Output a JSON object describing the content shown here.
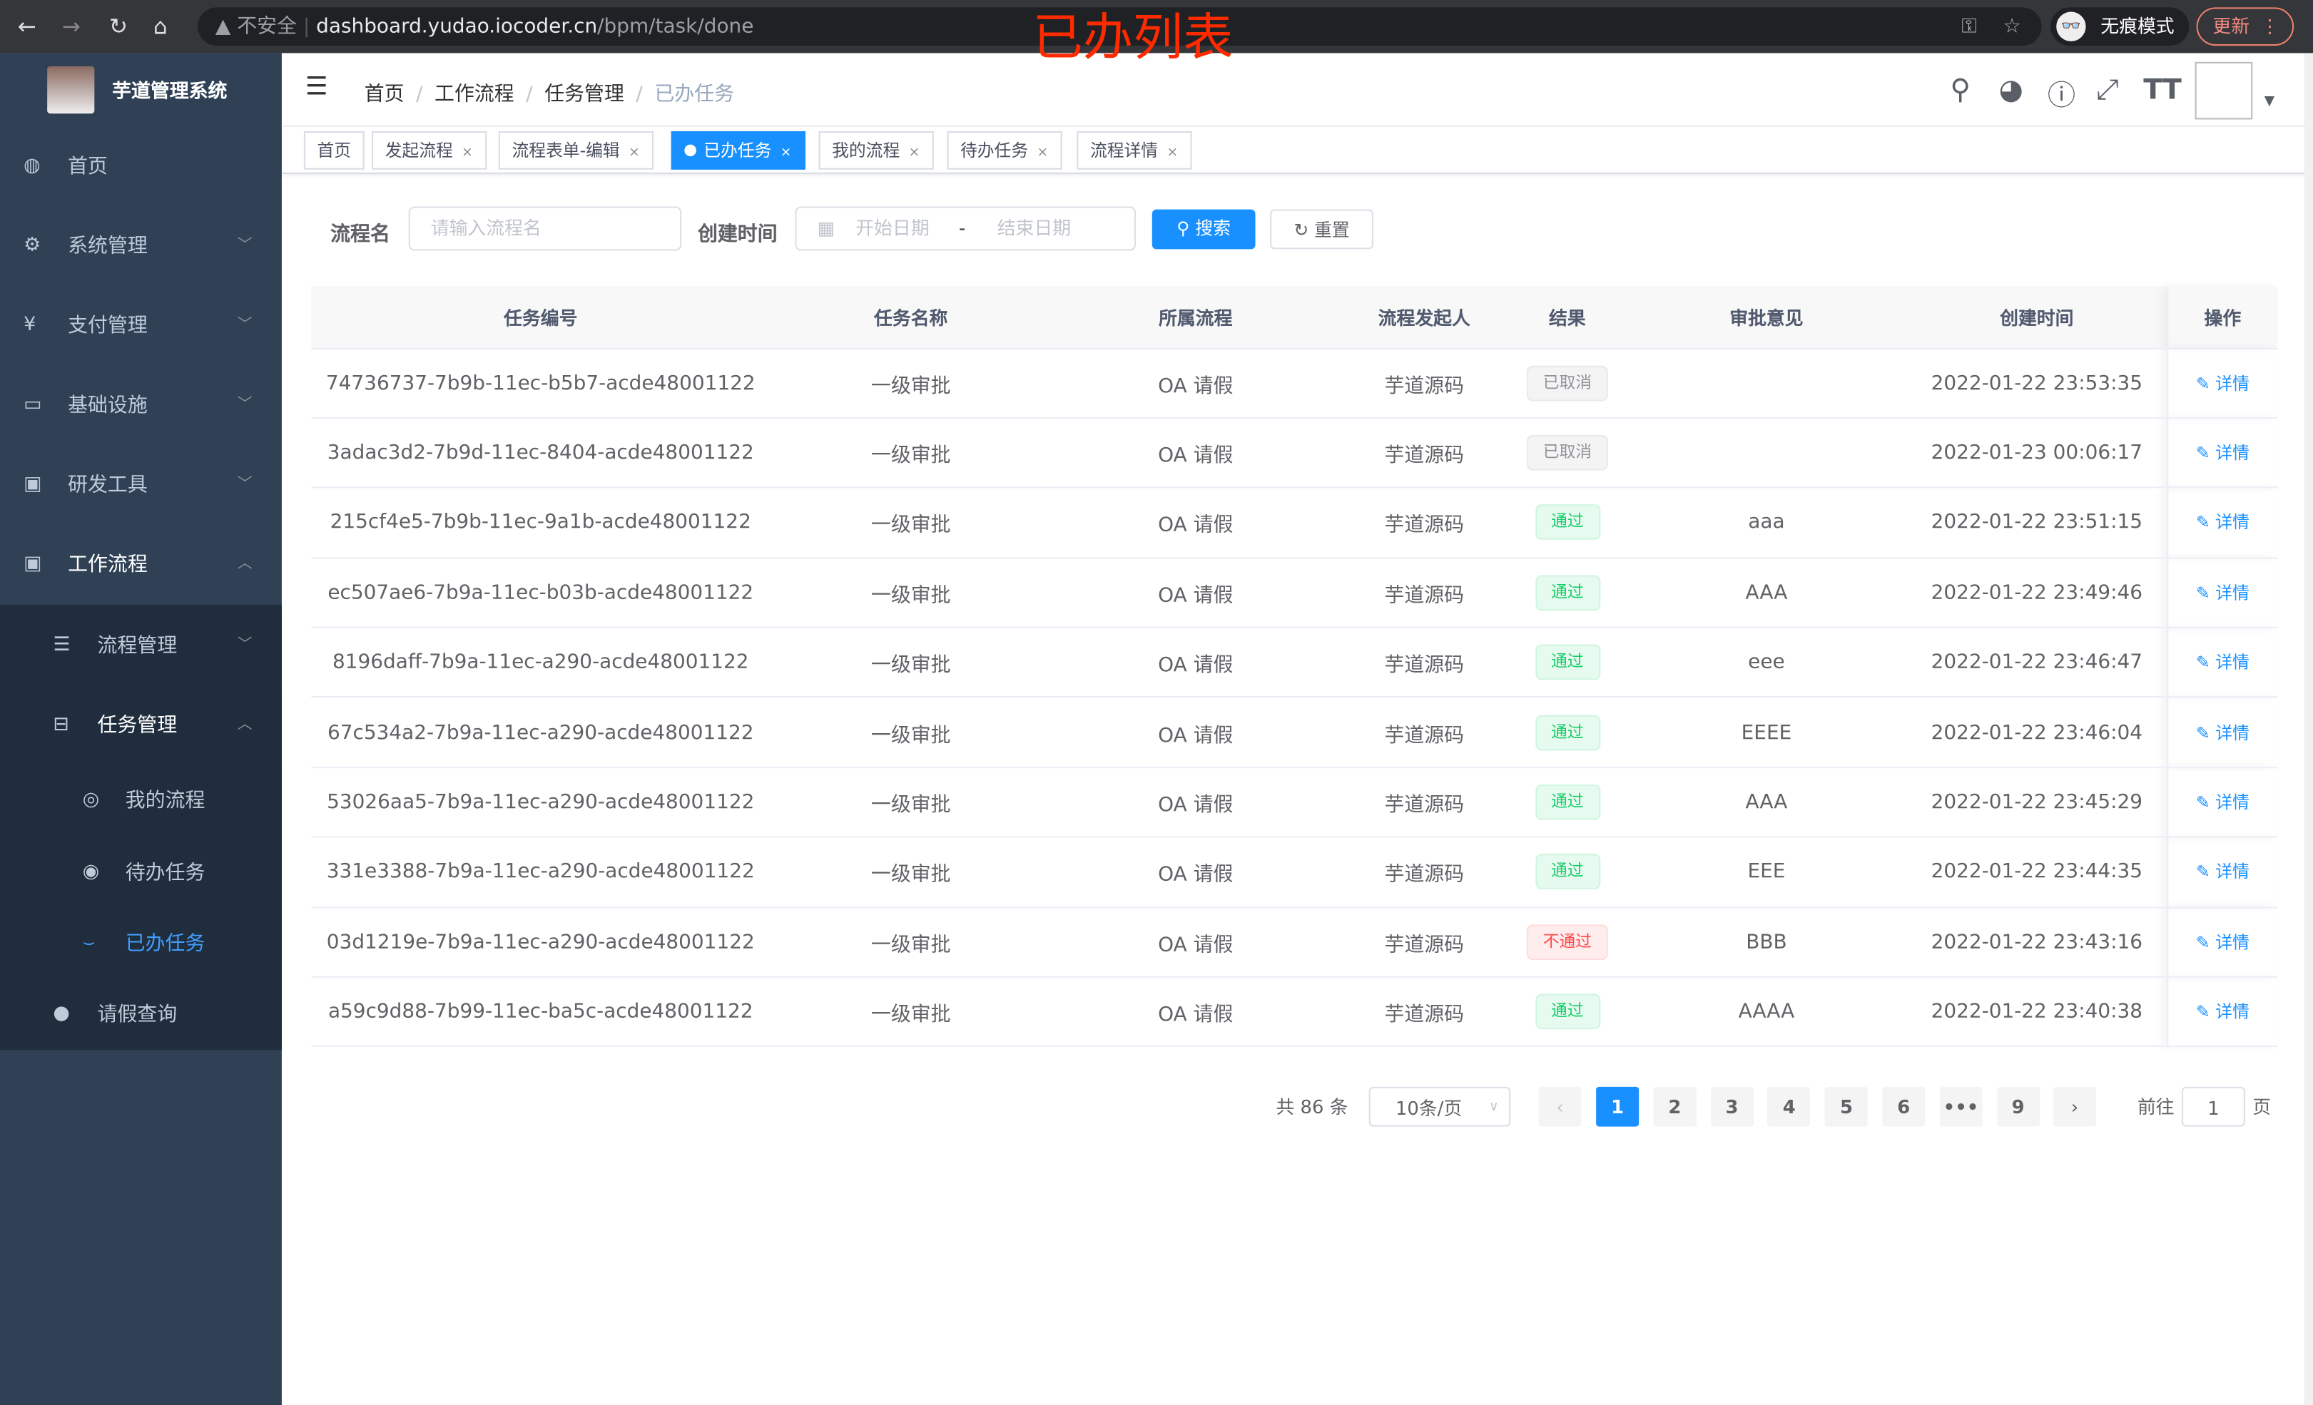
{
  "browser": {
    "url_host": "dashboard.yudao.iocoder.cn",
    "url_path": "/bpm/task/done",
    "insecure": "不安全",
    "incognito": "无痕模式",
    "update": "更新"
  },
  "overlay_title": "已办列表",
  "sidebar": {
    "title": "芋道管理系统",
    "items": [
      {
        "label": "首页",
        "icon": "dashboard-icon"
      },
      {
        "label": "系统管理",
        "icon": "gear-icon"
      },
      {
        "label": "支付管理",
        "icon": "yen-icon"
      },
      {
        "label": "基础设施",
        "icon": "monitor-icon"
      },
      {
        "label": "研发工具",
        "icon": "toolbox-icon"
      },
      {
        "label": "工作流程",
        "icon": "toolbox-icon"
      },
      {
        "label": "流程管理",
        "icon": "list-icon"
      },
      {
        "label": "任务管理",
        "icon": "tree-icon"
      },
      {
        "label": "我的流程",
        "icon": "chat-icon"
      },
      {
        "label": "待办任务",
        "icon": "eye-icon"
      },
      {
        "label": "已办任务",
        "icon": "eye-closed-icon"
      },
      {
        "label": "请假查询",
        "icon": "user-icon"
      }
    ]
  },
  "breadcrumb": [
    "首页",
    "工作流程",
    "任务管理",
    "已办任务"
  ],
  "tags": [
    "首页",
    "发起流程",
    "流程表单-编辑",
    "已办任务",
    "我的流程",
    "待办任务",
    "流程详情"
  ],
  "search": {
    "name_label": "流程名",
    "name_placeholder": "请输入流程名",
    "time_label": "创建时间",
    "start_placeholder": "开始日期",
    "sep": "-",
    "end_placeholder": "结束日期",
    "search_btn": "搜索",
    "reset_btn": "重置"
  },
  "table": {
    "headers": [
      "任务编号",
      "任务名称",
      "所属流程",
      "流程发起人",
      "结果",
      "审批意见",
      "创建时间",
      "操作"
    ],
    "rows": [
      [
        "74736737-7b9b-11ec-b5b7-acde48001122",
        "一级审批",
        "OA 请假",
        "芋道源码",
        "已取消",
        "",
        "2022-01-22 23:53:35",
        "详情"
      ],
      [
        "3adac3d2-7b9d-11ec-8404-acde48001122",
        "一级审批",
        "OA 请假",
        "芋道源码",
        "已取消",
        "",
        "2022-01-23 00:06:17",
        "详情"
      ],
      [
        "215cf4e5-7b9b-11ec-9a1b-acde48001122",
        "一级审批",
        "OA 请假",
        "芋道源码",
        "通过",
        "aaa",
        "2022-01-22 23:51:15",
        "详情"
      ],
      [
        "ec507ae6-7b9a-11ec-b03b-acde48001122",
        "一级审批",
        "OA 请假",
        "芋道源码",
        "通过",
        "AAA",
        "2022-01-22 23:49:46",
        "详情"
      ],
      [
        "8196daff-7b9a-11ec-a290-acde48001122",
        "一级审批",
        "OA 请假",
        "芋道源码",
        "通过",
        "eee",
        "2022-01-22 23:46:47",
        "详情"
      ],
      [
        "67c534a2-7b9a-11ec-a290-acde48001122",
        "一级审批",
        "OA 请假",
        "芋道源码",
        "通过",
        "EEEE",
        "2022-01-22 23:46:04",
        "详情"
      ],
      [
        "53026aa5-7b9a-11ec-a290-acde48001122",
        "一级审批",
        "OA 请假",
        "芋道源码",
        "通过",
        "AAA",
        "2022-01-22 23:45:29",
        "详情"
      ],
      [
        "331e3388-7b9a-11ec-a290-acde48001122",
        "一级审批",
        "OA 请假",
        "芋道源码",
        "通过",
        "EEE",
        "2022-01-22 23:44:35",
        "详情"
      ],
      [
        "03d1219e-7b9a-11ec-a290-acde48001122",
        "一级审批",
        "OA 请假",
        "芋道源码",
        "不通过",
        "BBB",
        "2022-01-22 23:43:16",
        "详情"
      ],
      [
        "a59c9d88-7b99-11ec-ba5c-acde48001122",
        "一级审批",
        "OA 请假",
        "芋道源码",
        "通过",
        "AAAA",
        "2022-01-22 23:40:38",
        "详情"
      ]
    ]
  },
  "status_colors": {
    "已取消": "#909399",
    "通过": "#13ce66",
    "不通过": "#ff4949"
  },
  "pagination": {
    "total": "共 86 条",
    "page_size": "10条/页",
    "pages": [
      "1",
      "2",
      "3",
      "4",
      "5",
      "6",
      "•••",
      "9"
    ],
    "current": "1",
    "goto_label": "前往",
    "goto_value": "1",
    "page_unit": "页"
  }
}
